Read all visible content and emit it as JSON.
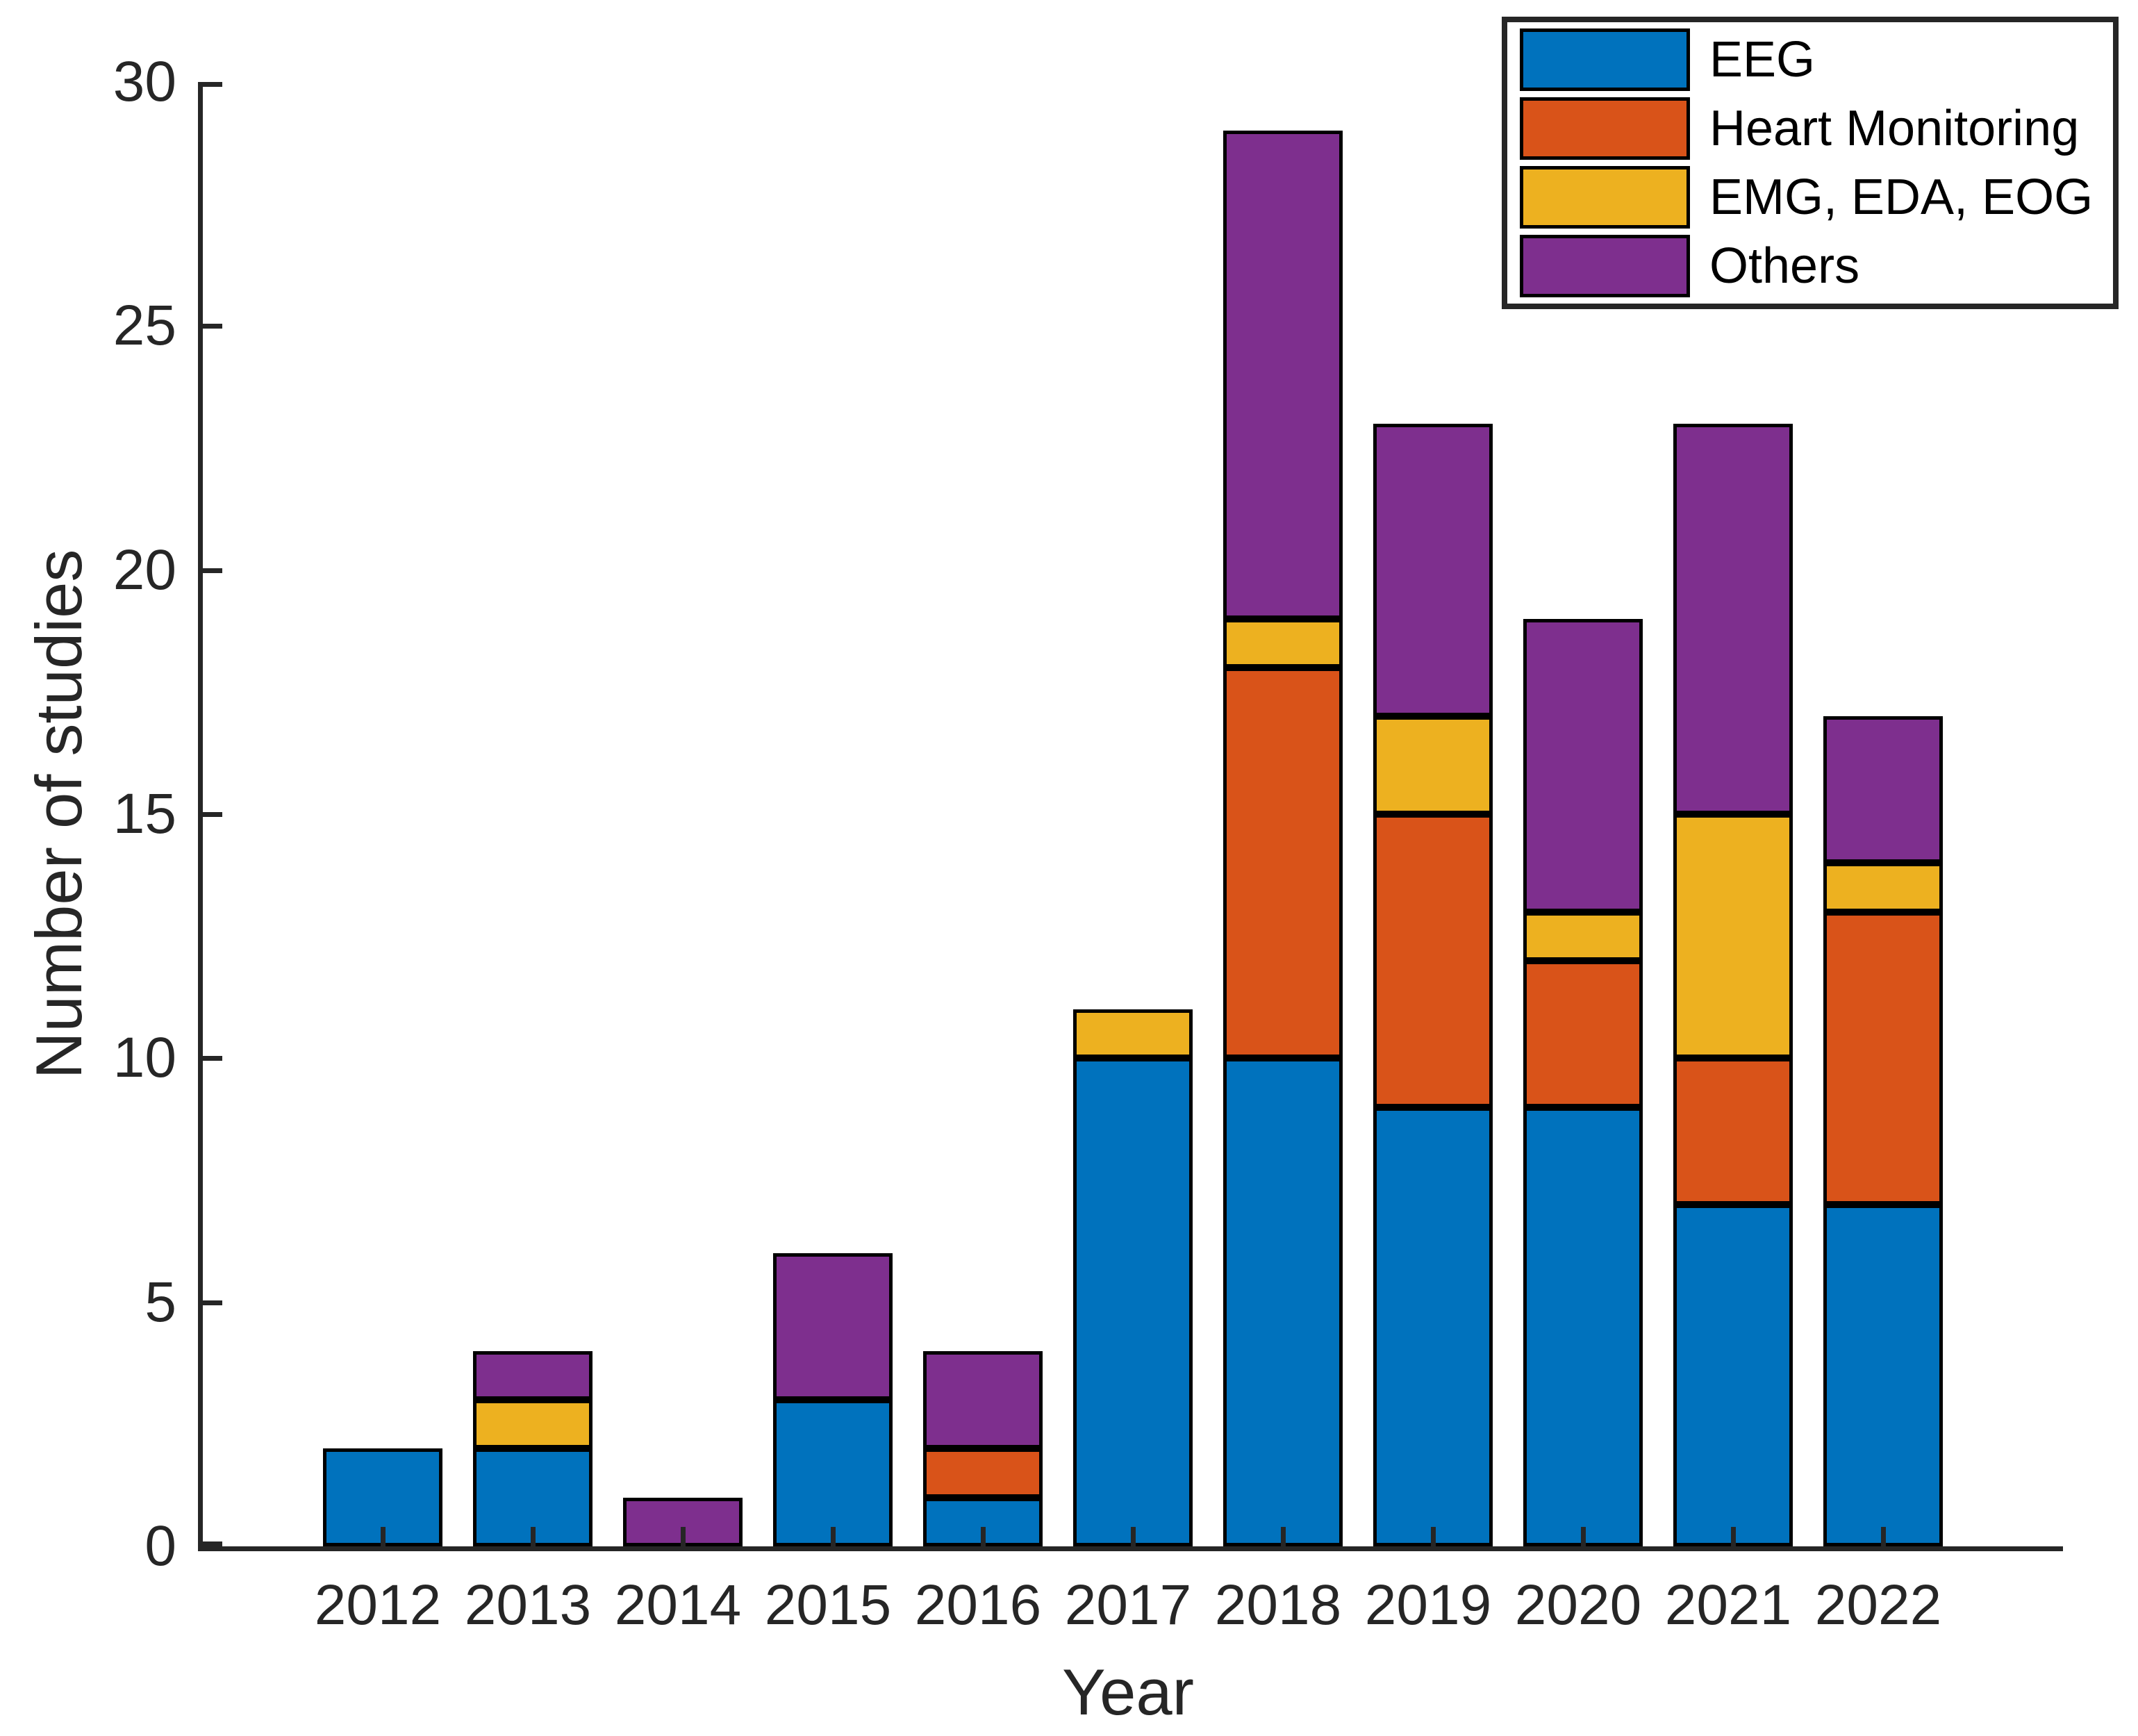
{
  "chart_data": {
    "type": "bar",
    "stacked": true,
    "title": "",
    "xlabel": "Year",
    "ylabel": "Number of studies",
    "categories": [
      "2012",
      "2013",
      "2014",
      "2015",
      "2016",
      "2017",
      "2018",
      "2019",
      "2020",
      "2021",
      "2022"
    ],
    "series": [
      {
        "name": "EEG",
        "color": "#0072BD",
        "values": [
          2,
          2,
          0,
          3,
          1,
          10,
          10,
          9,
          9,
          7,
          7
        ]
      },
      {
        "name": "Heart Monitoring",
        "color": "#D95319",
        "values": [
          0,
          0,
          0,
          0,
          1,
          0,
          8,
          6,
          3,
          3,
          6
        ]
      },
      {
        "name": "EMG, EDA, EOG",
        "color": "#EDB120",
        "values": [
          0,
          1,
          0,
          0,
          0,
          1,
          1,
          2,
          1,
          5,
          1
        ]
      },
      {
        "name": "Others",
        "color": "#7E2F8E",
        "values": [
          0,
          1,
          1,
          3,
          2,
          0,
          10,
          6,
          6,
          8,
          3
        ]
      }
    ],
    "totals": [
      2,
      4,
      1,
      6,
      4,
      11,
      29,
      23,
      19,
      23,
      17
    ],
    "ylim": [
      0,
      30
    ],
    "yticks": [
      0,
      5,
      10,
      15,
      20,
      25,
      30
    ],
    "grid": false,
    "legend_position": "top-right",
    "axis_color": "#262626",
    "bar_edge_color": "#000000"
  }
}
